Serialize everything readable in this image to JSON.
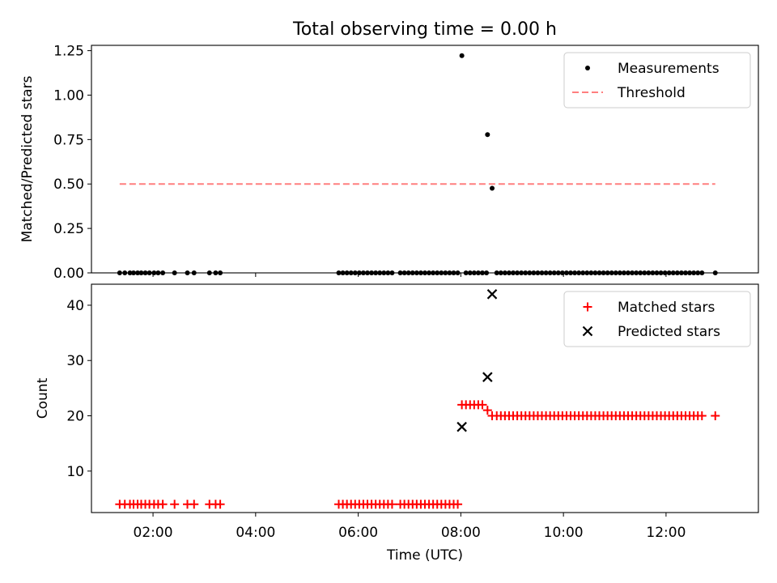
{
  "chart_data": [
    {
      "type": "scatter",
      "title": "Total observing time = 0.00 h",
      "xlabel": "",
      "ylabel": "Matched/Predicted stars",
      "xlim": [
        0.8,
        13.8
      ],
      "ylim": [
        0,
        1.28
      ],
      "yticks": [
        0.0,
        0.25,
        0.5,
        0.75,
        1.0,
        1.25
      ],
      "ytick_labels": [
        "0.00",
        "0.25",
        "0.50",
        "0.75",
        "1.00",
        "1.25"
      ],
      "xticks": [
        2,
        4,
        6,
        8,
        10,
        12
      ],
      "legend_loc": "upper right",
      "legend": [
        "Measurements",
        "Threshold"
      ],
      "series": [
        {
          "name": "Measurements",
          "marker": "dot",
          "color": "#000000",
          "points": [
            [
              1.35,
              0
            ],
            [
              1.45,
              0
            ],
            [
              1.55,
              0
            ],
            [
              1.62,
              0
            ],
            [
              1.7,
              0
            ],
            [
              1.77,
              0
            ],
            [
              1.85,
              0
            ],
            [
              1.93,
              0
            ],
            [
              2.02,
              0
            ],
            [
              2.1,
              0
            ],
            [
              2.19,
              0
            ],
            [
              2.42,
              0
            ],
            [
              2.67,
              0
            ],
            [
              2.8,
              0
            ],
            [
              3.1,
              0
            ],
            [
              3.22,
              0
            ],
            [
              3.31,
              0
            ],
            [
              5.62,
              0
            ],
            [
              5.7,
              0
            ],
            [
              5.78,
              0
            ],
            [
              5.86,
              0
            ],
            [
              5.94,
              0
            ],
            [
              6.02,
              0
            ],
            [
              6.1,
              0
            ],
            [
              6.18,
              0
            ],
            [
              6.26,
              0
            ],
            [
              6.34,
              0
            ],
            [
              6.42,
              0
            ],
            [
              6.5,
              0
            ],
            [
              6.58,
              0
            ],
            [
              6.66,
              0
            ],
            [
              6.82,
              0
            ],
            [
              6.9,
              0
            ],
            [
              6.98,
              0
            ],
            [
              7.06,
              0
            ],
            [
              7.14,
              0
            ],
            [
              7.22,
              0
            ],
            [
              7.3,
              0
            ],
            [
              7.38,
              0
            ],
            [
              7.46,
              0
            ],
            [
              7.54,
              0
            ],
            [
              7.62,
              0
            ],
            [
              7.7,
              0
            ],
            [
              7.78,
              0
            ],
            [
              7.86,
              0
            ],
            [
              7.94,
              0
            ],
            [
              8.02,
              1.222
            ],
            [
              8.1,
              0
            ],
            [
              8.18,
              0
            ],
            [
              8.26,
              0
            ],
            [
              8.34,
              0
            ],
            [
              8.42,
              0
            ],
            [
              8.5,
              0
            ],
            [
              8.52,
              0.778
            ],
            [
              8.61,
              0.476
            ],
            [
              8.7,
              0
            ],
            [
              8.78,
              0
            ],
            [
              8.86,
              0
            ],
            [
              8.94,
              0
            ],
            [
              9.02,
              0
            ],
            [
              9.1,
              0
            ],
            [
              9.18,
              0
            ],
            [
              9.26,
              0
            ],
            [
              9.34,
              0
            ],
            [
              9.42,
              0
            ],
            [
              9.5,
              0
            ],
            [
              9.58,
              0
            ],
            [
              9.66,
              0
            ],
            [
              9.74,
              0
            ],
            [
              9.82,
              0
            ],
            [
              9.9,
              0
            ],
            [
              9.98,
              0
            ],
            [
              10.06,
              0
            ],
            [
              10.14,
              0
            ],
            [
              10.22,
              0
            ],
            [
              10.3,
              0
            ],
            [
              10.38,
              0
            ],
            [
              10.46,
              0
            ],
            [
              10.54,
              0
            ],
            [
              10.62,
              0
            ],
            [
              10.7,
              0
            ],
            [
              10.78,
              0
            ],
            [
              10.86,
              0
            ],
            [
              10.94,
              0
            ],
            [
              11.02,
              0
            ],
            [
              11.1,
              0
            ],
            [
              11.18,
              0
            ],
            [
              11.26,
              0
            ],
            [
              11.34,
              0
            ],
            [
              11.42,
              0
            ],
            [
              11.5,
              0
            ],
            [
              11.58,
              0
            ],
            [
              11.66,
              0
            ],
            [
              11.74,
              0
            ],
            [
              11.82,
              0
            ],
            [
              11.9,
              0
            ],
            [
              11.98,
              0
            ],
            [
              12.06,
              0
            ],
            [
              12.14,
              0
            ],
            [
              12.22,
              0
            ],
            [
              12.3,
              0
            ],
            [
              12.38,
              0
            ],
            [
              12.46,
              0
            ],
            [
              12.54,
              0
            ],
            [
              12.62,
              0
            ],
            [
              12.7,
              0
            ],
            [
              12.96,
              0
            ]
          ]
        },
        {
          "name": "Threshold",
          "style": "dashed-line",
          "color": "#ff7f7f",
          "points": [
            [
              1.35,
              0.5
            ],
            [
              12.96,
              0.5
            ]
          ]
        }
      ]
    },
    {
      "type": "scatter",
      "title": "",
      "xlabel": "Time (UTC)",
      "ylabel": "Count",
      "xlim": [
        0.8,
        13.8
      ],
      "ylim": [
        2.5,
        43.8
      ],
      "yticks": [
        10,
        20,
        30,
        40
      ],
      "ytick_labels": [
        "10",
        "20",
        "30",
        "40"
      ],
      "xticks": [
        2,
        4,
        6,
        8,
        10,
        12
      ],
      "xtick_labels": [
        "02:00",
        "04:00",
        "06:00",
        "08:00",
        "10:00",
        "12:00"
      ],
      "legend_loc": "upper right",
      "legend": [
        "Matched stars",
        "Predicted stars"
      ],
      "series": [
        {
          "name": "Matched stars",
          "marker": "plus",
          "color": "#ff0000",
          "points": [
            [
              1.35,
              4
            ],
            [
              1.45,
              4
            ],
            [
              1.55,
              4
            ],
            [
              1.62,
              4
            ],
            [
              1.7,
              4
            ],
            [
              1.77,
              4
            ],
            [
              1.85,
              4
            ],
            [
              1.93,
              4
            ],
            [
              2.02,
              4
            ],
            [
              2.1,
              4
            ],
            [
              2.19,
              4
            ],
            [
              2.42,
              4
            ],
            [
              2.67,
              4
            ],
            [
              2.8,
              4
            ],
            [
              3.1,
              4
            ],
            [
              3.22,
              4
            ],
            [
              3.31,
              4
            ],
            [
              5.62,
              4
            ],
            [
              5.7,
              4
            ],
            [
              5.78,
              4
            ],
            [
              5.86,
              4
            ],
            [
              5.94,
              4
            ],
            [
              6.02,
              4
            ],
            [
              6.1,
              4
            ],
            [
              6.18,
              4
            ],
            [
              6.26,
              4
            ],
            [
              6.34,
              4
            ],
            [
              6.42,
              4
            ],
            [
              6.5,
              4
            ],
            [
              6.58,
              4
            ],
            [
              6.66,
              4
            ],
            [
              6.82,
              4
            ],
            [
              6.9,
              4
            ],
            [
              6.98,
              4
            ],
            [
              7.06,
              4
            ],
            [
              7.14,
              4
            ],
            [
              7.22,
              4
            ],
            [
              7.3,
              4
            ],
            [
              7.38,
              4
            ],
            [
              7.46,
              4
            ],
            [
              7.54,
              4
            ],
            [
              7.62,
              4
            ],
            [
              7.7,
              4
            ],
            [
              7.78,
              4
            ],
            [
              7.86,
              4
            ],
            [
              7.94,
              4
            ],
            [
              8.02,
              22
            ],
            [
              8.1,
              22
            ],
            [
              8.18,
              22
            ],
            [
              8.26,
              22
            ],
            [
              8.34,
              22
            ],
            [
              8.42,
              22
            ],
            [
              8.52,
              21
            ],
            [
              8.61,
              20
            ],
            [
              8.7,
              20
            ],
            [
              8.78,
              20
            ],
            [
              8.86,
              20
            ],
            [
              8.94,
              20
            ],
            [
              9.02,
              20
            ],
            [
              9.1,
              20
            ],
            [
              9.18,
              20
            ],
            [
              9.26,
              20
            ],
            [
              9.34,
              20
            ],
            [
              9.42,
              20
            ],
            [
              9.5,
              20
            ],
            [
              9.58,
              20
            ],
            [
              9.66,
              20
            ],
            [
              9.74,
              20
            ],
            [
              9.82,
              20
            ],
            [
              9.9,
              20
            ],
            [
              9.98,
              20
            ],
            [
              10.06,
              20
            ],
            [
              10.14,
              20
            ],
            [
              10.22,
              20
            ],
            [
              10.3,
              20
            ],
            [
              10.38,
              20
            ],
            [
              10.46,
              20
            ],
            [
              10.54,
              20
            ],
            [
              10.62,
              20
            ],
            [
              10.7,
              20
            ],
            [
              10.78,
              20
            ],
            [
              10.86,
              20
            ],
            [
              10.94,
              20
            ],
            [
              11.02,
              20
            ],
            [
              11.1,
              20
            ],
            [
              11.18,
              20
            ],
            [
              11.26,
              20
            ],
            [
              11.34,
              20
            ],
            [
              11.42,
              20
            ],
            [
              11.5,
              20
            ],
            [
              11.58,
              20
            ],
            [
              11.66,
              20
            ],
            [
              11.74,
              20
            ],
            [
              11.82,
              20
            ],
            [
              11.9,
              20
            ],
            [
              11.98,
              20
            ],
            [
              12.06,
              20
            ],
            [
              12.14,
              20
            ],
            [
              12.22,
              20
            ],
            [
              12.3,
              20
            ],
            [
              12.38,
              20
            ],
            [
              12.46,
              20
            ],
            [
              12.54,
              20
            ],
            [
              12.62,
              20
            ],
            [
              12.7,
              20
            ],
            [
              12.96,
              20
            ]
          ]
        },
        {
          "name": "Predicted stars",
          "marker": "x",
          "color": "#000000",
          "points": [
            [
              8.02,
              18
            ],
            [
              8.52,
              27
            ],
            [
              8.61,
              42
            ]
          ]
        }
      ]
    }
  ]
}
